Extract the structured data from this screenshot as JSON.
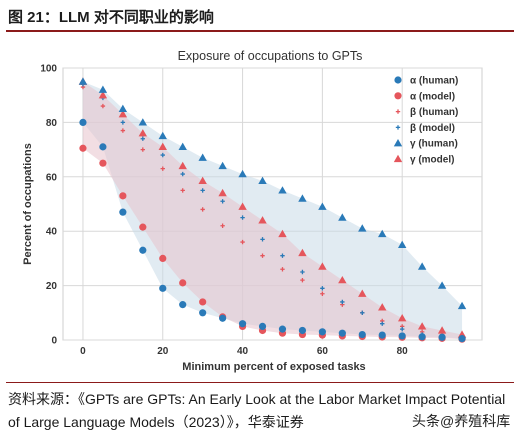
{
  "figure_title": "图 21：LLM 对不同职业的影响",
  "source_text": "资料来源：《GPTs are GPTs: An Early Look at the Labor Market Impact Potential of Large Language Models（2023）》，华泰证券",
  "watermark_text": "头条@养殖科库",
  "colors": {
    "blue_band": "#c9dbe8",
    "red_band": "#e7c3cc",
    "overlap": "#c8bfd1",
    "blue_marker": "#2a7ab8",
    "red_marker": "#e5565c",
    "grid": "#d8d8d8",
    "accent_rule": "#8b1a1a"
  },
  "chart_data": {
    "type": "scatter",
    "title": "Exposure of occupations to GPTs",
    "xlabel": "Minimum percent of exposed tasks",
    "ylabel": "Percent of occupations",
    "xlim": [
      -5,
      100
    ],
    "ylim": [
      0,
      100
    ],
    "xticks": [
      "0",
      "20",
      "40",
      "60",
      "80"
    ],
    "xtick_values": [
      0,
      20,
      40,
      60,
      80
    ],
    "yticks": [
      "0",
      "20",
      "40",
      "60",
      "80",
      "100"
    ],
    "ytick_values": [
      0,
      20,
      40,
      60,
      80,
      100
    ],
    "grid": true,
    "legend_position": "top-right",
    "bands": [
      {
        "lower": "alpha (human)",
        "upper": "gamma (human)",
        "color_key": "blue_band"
      },
      {
        "lower": "alpha (model)",
        "upper": "gamma (model)",
        "color_key": "red_band"
      }
    ],
    "series": [
      {
        "name": "α (human)",
        "marker": "circle",
        "size": "large",
        "color_key": "blue_marker",
        "x": [
          0,
          5,
          10,
          15,
          20,
          25,
          30,
          35,
          40,
          45,
          50,
          55,
          60,
          65,
          70,
          75,
          80,
          85,
          90,
          95
        ],
        "y": [
          80,
          71,
          47,
          33,
          19,
          13,
          10,
          8,
          6,
          5,
          4,
          3.5,
          3,
          2.5,
          2,
          1.8,
          1.5,
          1.2,
          1.0,
          0.5
        ]
      },
      {
        "name": "α (model)",
        "marker": "circle",
        "size": "large",
        "color_key": "red_marker",
        "x": [
          0,
          5,
          10,
          15,
          20,
          25,
          30,
          35,
          40,
          45,
          50,
          55,
          60,
          65,
          70,
          75,
          80,
          85,
          90,
          95
        ],
        "y": [
          70.5,
          65,
          53,
          41.5,
          30,
          21,
          14,
          8.5,
          5,
          3.5,
          2.5,
          2,
          1.8,
          1.5,
          1.3,
          1.1,
          1.0,
          0.8,
          0.6,
          0.3
        ]
      },
      {
        "name": "β (human)",
        "marker": "plus",
        "size": "small",
        "color_key": "red_marker",
        "x": [
          0,
          5,
          10,
          15,
          20,
          25,
          30,
          35,
          40,
          45,
          50,
          55,
          60,
          65,
          70,
          75,
          80,
          85,
          90,
          95
        ],
        "y": [
          93,
          86,
          77,
          70,
          63,
          55,
          48,
          42,
          36,
          31,
          26,
          22,
          17,
          13,
          10,
          7,
          5,
          3,
          2,
          1
        ]
      },
      {
        "name": "β (model)",
        "marker": "plus",
        "size": "small",
        "color_key": "blue_marker",
        "x": [
          0,
          5,
          10,
          15,
          20,
          25,
          30,
          35,
          40,
          45,
          50,
          55,
          60,
          65,
          70,
          75,
          80,
          85,
          90,
          95
        ],
        "y": [
          94,
          89,
          80,
          74,
          68,
          61,
          55,
          51,
          45,
          37,
          31,
          25,
          19,
          14,
          10,
          6,
          4,
          2,
          1.5,
          1
        ]
      },
      {
        "name": "γ (human)",
        "marker": "triangle",
        "size": "large",
        "color_key": "blue_marker",
        "x": [
          0,
          5,
          10,
          15,
          20,
          25,
          30,
          35,
          40,
          45,
          50,
          55,
          60,
          65,
          70,
          75,
          80,
          85,
          90,
          95
        ],
        "y": [
          95,
          92,
          85,
          80,
          75,
          71,
          67,
          64,
          61,
          58.5,
          55,
          52,
          49,
          45,
          41,
          39,
          35,
          27,
          20,
          12.5
        ]
      },
      {
        "name": "γ (model)",
        "marker": "triangle",
        "size": "large",
        "color_key": "red_marker",
        "x": [
          0,
          5,
          10,
          15,
          20,
          25,
          30,
          35,
          40,
          45,
          50,
          55,
          60,
          65,
          70,
          75,
          80,
          85,
          90,
          95
        ],
        "y": [
          95,
          90,
          83,
          76,
          71,
          64,
          58.5,
          54,
          49,
          44,
          39,
          32,
          27,
          22,
          17,
          12,
          8,
          5,
          3.5,
          2
        ]
      }
    ]
  }
}
